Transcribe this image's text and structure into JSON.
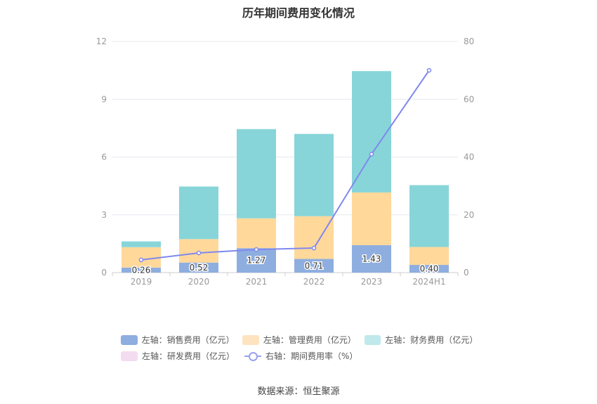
{
  "chart_data": {
    "type": "bar",
    "title": "历年期间费用变化情况",
    "categories": [
      "2019",
      "2020",
      "2021",
      "2022",
      "2023",
      "2024H1"
    ],
    "y_left": {
      "ylim": [
        0,
        12
      ],
      "ticks": [
        0,
        3,
        6,
        9,
        12
      ]
    },
    "y_right": {
      "ylim": [
        0,
        80
      ],
      "ticks": [
        0,
        20,
        40,
        60,
        80
      ]
    },
    "stacked": true,
    "series": [
      {
        "name": "左轴：销售费用（亿元）",
        "axis": "left",
        "kind": "bar",
        "color": "#8eaedf",
        "values": [
          0.26,
          0.52,
          1.27,
          0.71,
          1.43,
          0.4
        ],
        "labels": [
          "0.26",
          "0.52",
          "1.27",
          "0.71",
          "1.43",
          "0.40"
        ]
      },
      {
        "name": "左轴：管理费用（亿元）",
        "axis": "left",
        "kind": "bar",
        "color": "#ffd89a",
        "values": [
          1.06,
          1.22,
          1.55,
          2.22,
          2.73,
          0.93
        ]
      },
      {
        "name": "左轴：财务费用（亿元）",
        "axis": "left",
        "kind": "bar",
        "color": "#87d5d9",
        "values": [
          0.3,
          2.73,
          4.63,
          4.27,
          6.3,
          3.21
        ]
      },
      {
        "name": "左轴：研发费用（亿元）",
        "axis": "left",
        "kind": "bar",
        "color": "#f2d9ec",
        "values": [
          0,
          0,
          0,
          0,
          0,
          0
        ]
      },
      {
        "name": "右轴：期间费用率（%）",
        "axis": "right",
        "kind": "line",
        "color": "#8088ee",
        "values": [
          4.4,
          6.8,
          8.0,
          8.5,
          41.0,
          70.0
        ]
      }
    ],
    "grid": true,
    "legend_position": "bottom"
  },
  "legend": {
    "row1": [
      {
        "label": "左轴：销售费用（亿元）",
        "color": "#8eaedf"
      },
      {
        "label": "左轴：管理费用（亿元）",
        "color": "#fde3bf"
      },
      {
        "label": "左轴：财务费用（亿元）",
        "color": "#bfe9ea"
      }
    ],
    "row2": [
      {
        "label": "左轴：研发费用（亿元）",
        "color": "#f3dcef"
      },
      {
        "label": "右轴：期间费用率（%）"
      }
    ]
  },
  "source": "数据来源：恒生聚源"
}
